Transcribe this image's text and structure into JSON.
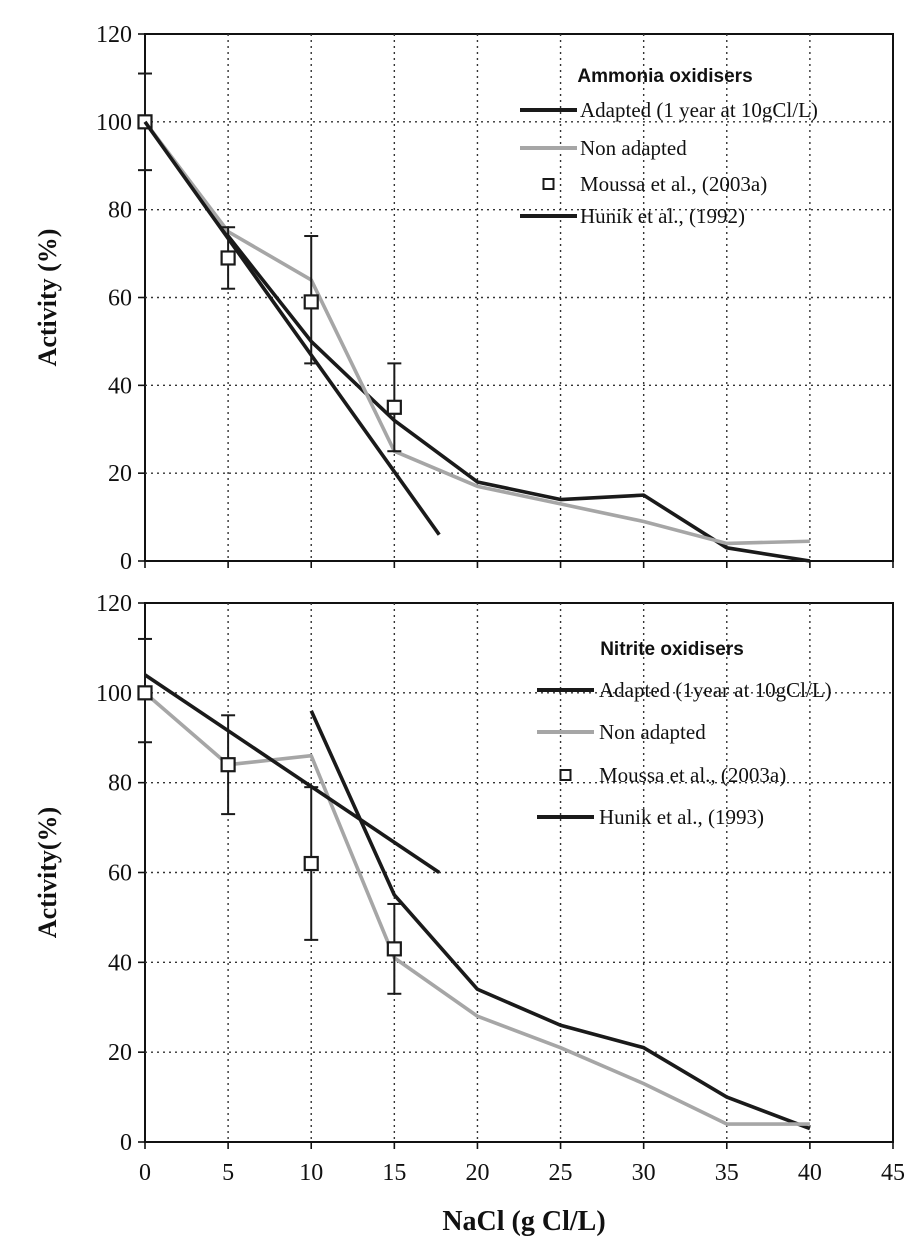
{
  "chart_data": [
    {
      "type": "line",
      "title": "Ammonia oxidisers",
      "xlabel": "",
      "ylabel": "Activity (%)",
      "xlim": [
        0,
        45
      ],
      "ylim": [
        0,
        120
      ],
      "x_ticks": [
        0,
        5,
        10,
        15,
        20,
        25,
        30,
        35,
        40,
        45
      ],
      "y_ticks": [
        0,
        20,
        40,
        60,
        80,
        100,
        120
      ],
      "x_tick_labels": [],
      "y_tick_labels": [
        "0",
        "20",
        "40",
        "60",
        "80",
        "100",
        "120"
      ],
      "grid": true,
      "legend_position": "top-right",
      "series": [
        {
          "name": "Adapted (1 year at 10gCl/L)",
          "style": "line",
          "color": "#1a1a1a",
          "x": [
            0,
            5,
            10,
            15,
            20,
            25,
            30,
            35,
            40
          ],
          "y": [
            100,
            74,
            50,
            32,
            18,
            14,
            15,
            3,
            0
          ]
        },
        {
          "name": "Non adapted",
          "style": "line",
          "color": "#a6a6a6",
          "x": [
            0,
            5,
            10,
            15,
            20,
            25,
            30,
            35,
            40
          ],
          "y": [
            100,
            75,
            64,
            25,
            17,
            13,
            9,
            4,
            4.5
          ]
        },
        {
          "name": "Moussa et al.,  (2003a)",
          "style": "marker",
          "color": "#1a1a1a",
          "x": [
            0,
            5,
            10,
            15
          ],
          "y": [
            100,
            69,
            59,
            35
          ],
          "error": [
            [
              89,
              111
            ],
            [
              62,
              76
            ],
            [
              45,
              74
            ],
            [
              25,
              45
            ]
          ]
        },
        {
          "name": "Hunik et al., (1992)",
          "style": "line",
          "color": "#1a1a1a",
          "x": [
            0,
            17.7
          ],
          "y": [
            100,
            6
          ]
        }
      ]
    },
    {
      "type": "line",
      "title": "Nitrite oxidisers",
      "xlabel": "NaCl (g Cl/L)",
      "ylabel": "Activity(%)",
      "xlim": [
        0,
        45
      ],
      "ylim": [
        0,
        120
      ],
      "x_ticks": [
        0,
        5,
        10,
        15,
        20,
        25,
        30,
        35,
        40,
        45
      ],
      "y_ticks": [
        0,
        20,
        40,
        60,
        80,
        100,
        120
      ],
      "x_tick_labels": [
        "0",
        "5",
        "10",
        "15",
        "20",
        "25",
        "30",
        "35",
        "40",
        "45"
      ],
      "y_tick_labels": [
        "0",
        "20",
        "40",
        "60",
        "80",
        "100",
        "120"
      ],
      "grid": true,
      "legend_position": "top-right",
      "series": [
        {
          "name": "Adapted (1year at 10gCl/L)",
          "style": "line",
          "color": "#1a1a1a",
          "x": [
            10,
            15,
            20,
            25,
            30,
            35,
            40
          ],
          "y": [
            96,
            55,
            34,
            26,
            21,
            10,
            3
          ]
        },
        {
          "name": "Non adapted",
          "style": "line",
          "color": "#a6a6a6",
          "x": [
            0,
            5,
            10,
            15,
            20,
            25,
            30,
            35,
            40
          ],
          "y": [
            100,
            84,
            86,
            41,
            28,
            21,
            13,
            4,
            4
          ]
        },
        {
          "name": "Moussa et al.,  (2003a)",
          "style": "marker",
          "color": "#1a1a1a",
          "x": [
            0,
            5,
            10,
            15
          ],
          "y": [
            100,
            84,
            62,
            43
          ],
          "error": [
            [
              89,
              112
            ],
            [
              73,
              95
            ],
            [
              45,
              79
            ],
            [
              33,
              53
            ]
          ]
        },
        {
          "name": "Hunik et al., (1993)",
          "style": "line",
          "color": "#1a1a1a",
          "x": [
            0,
            17.7
          ],
          "y": [
            104,
            60
          ]
        }
      ]
    }
  ]
}
